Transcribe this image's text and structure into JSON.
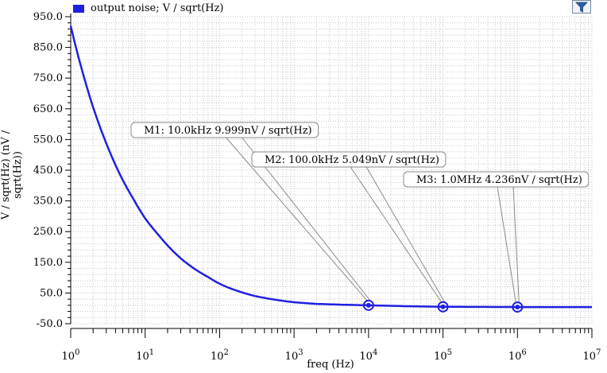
{
  "legend": {
    "label": "output noise; V / sqrt(Hz)",
    "color": "#2020e0"
  },
  "toolbar": {
    "filter_icon": "filter-icon"
  },
  "chart_data": {
    "type": "line",
    "xlabel": "freq (Hz)",
    "ylabel": "V / sqrt(Hz) (nV / sqrt(Hz))",
    "xscale": "log",
    "xlim": [
      1,
      10000000
    ],
    "ylim": [
      -50,
      950
    ],
    "xticks": [
      {
        "value": 1,
        "base": "10",
        "exp": "0"
      },
      {
        "value": 10,
        "base": "10",
        "exp": "1"
      },
      {
        "value": 100,
        "base": "10",
        "exp": "2"
      },
      {
        "value": 1000,
        "base": "10",
        "exp": "3"
      },
      {
        "value": 10000,
        "base": "10",
        "exp": "4"
      },
      {
        "value": 100000,
        "base": "10",
        "exp": "5"
      },
      {
        "value": 1000000,
        "base": "10",
        "exp": "6"
      },
      {
        "value": 10000000,
        "base": "10",
        "exp": "7"
      }
    ],
    "yticks": [
      "950.0",
      "850.0",
      "750.0",
      "650.0",
      "550.0",
      "450.0",
      "350.0",
      "250.0",
      "150.0",
      "50.0",
      "-50.0"
    ],
    "grid": true,
    "series": [
      {
        "name": "output noise; V / sqrt(Hz)",
        "color": "#2020e0",
        "x": [
          1,
          1.5,
          2,
          3,
          5,
          7,
          10,
          15,
          20,
          30,
          50,
          70,
          100,
          200,
          300,
          500,
          1000,
          2000,
          5000,
          10000,
          100000,
          1000000,
          10000000
        ],
        "y": [
          920,
          755,
          655,
          538,
          418,
          355,
          293,
          240,
          205,
          163,
          123,
          102,
          80,
          52,
          40,
          30,
          20,
          14.5,
          11.5,
          10,
          5.05,
          4.24,
          4.2
        ]
      }
    ],
    "markers": [
      {
        "label": "M1: 10.0kHz 9.999nV / sqrt(Hz)",
        "x": 10000,
        "y": 9.999
      },
      {
        "label": "M2: 100.0kHz 5.049nV / sqrt(Hz)",
        "x": 100000,
        "y": 5.049
      },
      {
        "label": "M3: 1.0MHz 4.236nV / sqrt(Hz)",
        "x": 1000000,
        "y": 4.236
      }
    ]
  }
}
